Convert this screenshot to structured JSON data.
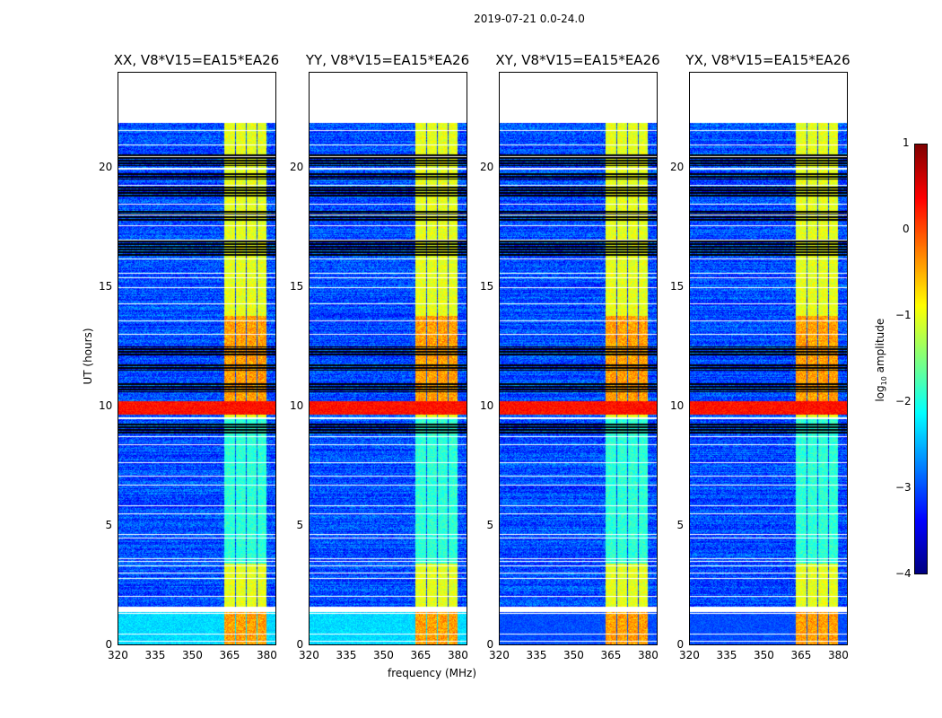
{
  "chart_data": {
    "type": "heatmap",
    "suptitle": "2019-07-21 0.0-24.0",
    "panels": [
      {
        "title": "XX, V8*V15=EA15*EA26",
        "pol": "XX",
        "low_time_level": -2.3
      },
      {
        "title": "YY, V8*V15=EA15*EA26",
        "pol": "YY",
        "low_time_level": -2.3
      },
      {
        "title": "XY, V8*V15=EA15*EA26",
        "pol": "XY",
        "low_time_level": -3.0
      },
      {
        "title": "YX, V8*V15=EA15*EA26",
        "pol": "YX",
        "low_time_level": -3.0
      }
    ],
    "xlabel": "frequency (MHz)",
    "ylabel": "UT (hours)",
    "xlim": [
      320,
      384
    ],
    "ylim": [
      0,
      24
    ],
    "xticks": [
      "320",
      "335",
      "350",
      "365",
      "380"
    ],
    "xtick_values": [
      320,
      335,
      350,
      365,
      380
    ],
    "yticks": [
      "0",
      "5",
      "10",
      "15",
      "20"
    ],
    "ytick_values": [
      0,
      5,
      10,
      15,
      20
    ],
    "data_time_range_hours": [
      0,
      21.9
    ],
    "background_level": -3.0,
    "bright_subbands_MHz": [
      [
        363,
        367.5
      ],
      [
        367.8,
        372
      ],
      [
        372.3,
        376.4
      ],
      [
        376.7,
        380.5
      ]
    ],
    "bright_level": -1.0,
    "rfi_event": {
      "hours": [
        9.65,
        10.2
      ],
      "level": 0.3
    },
    "flagged_rows_hours": [
      0.15,
      0.45,
      1.3,
      1.4,
      1.5,
      2.05,
      2.8,
      3.0,
      3.3,
      3.5,
      3.6,
      4.5,
      4.65,
      5.5,
      5.85,
      6.7,
      7.1,
      7.65,
      8.4,
      8.75,
      9.5,
      9.55,
      13.05,
      13.6,
      14.3,
      15.0,
      15.4,
      15.6,
      16.2,
      17.0,
      17.6,
      18.05,
      18.5,
      19.3,
      19.95,
      20.0,
      20.5,
      21.0,
      21.6
    ],
    "dropout_rows_hours": [
      [
        8.8,
        9.25
      ],
      [
        10.6,
        11.0
      ],
      [
        11.5,
        11.8
      ],
      [
        12.1,
        12.5
      ],
      [
        16.3,
        17.0
      ],
      [
        17.8,
        18.2
      ],
      [
        18.8,
        19.2
      ],
      [
        19.5,
        19.8
      ],
      [
        20.1,
        20.6
      ]
    ],
    "colorbar": {
      "label": "log10 amplitude",
      "range": [
        -4,
        1
      ],
      "ticks": [
        "−4",
        "−3",
        "−2",
        "−1",
        "0",
        "1"
      ],
      "tick_values": [
        -4,
        -3,
        -2,
        -1,
        0,
        1
      ]
    }
  }
}
